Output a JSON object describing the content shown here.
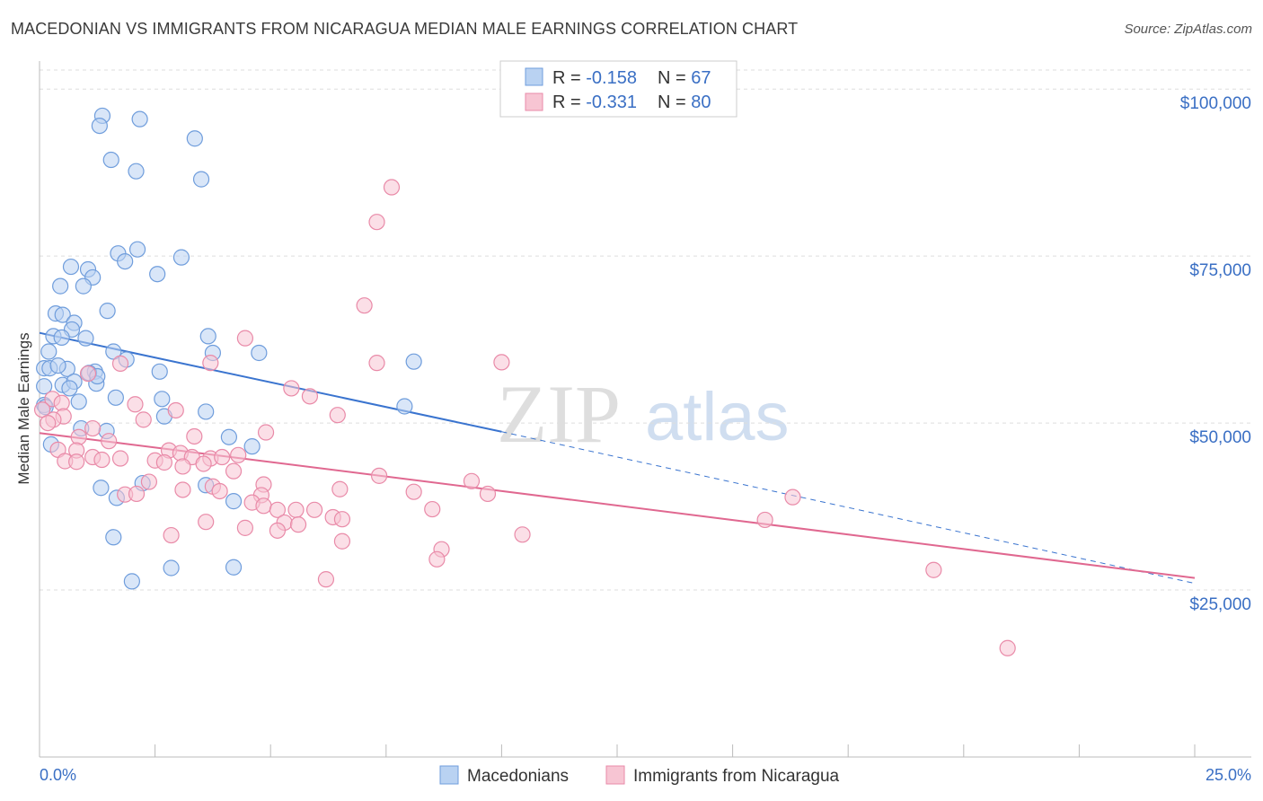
{
  "header": {
    "title": "MACEDONIAN VS IMMIGRANTS FROM NICARAGUA MEDIAN MALE EARNINGS CORRELATION CHART",
    "source": "Source: ZipAtlas.com"
  },
  "watermark": {
    "zip": "ZIP",
    "atlas": "atlas"
  },
  "colors": {
    "blue_fill": "#b9d2f2",
    "blue_stroke": "#6f9ddc",
    "blue_line": "#3a74cf",
    "pink_fill": "#f7c5d3",
    "pink_stroke": "#e98aa8",
    "pink_line": "#e06890",
    "grid": "#dddddd",
    "tick_text": "#3a6fc4"
  },
  "legend": {
    "rows": [
      {
        "r_label": "R = ",
        "r_value": "-0.158",
        "n_label": "N = ",
        "n_value": "67"
      },
      {
        "r_label": "R = ",
        "r_value": "-0.331",
        "n_label": "N = ",
        "n_value": "80"
      }
    ]
  },
  "bottom_legend": {
    "items": [
      "Macedonians",
      "Immigrants from Nicaragua"
    ]
  },
  "chart_data": {
    "type": "scatter",
    "title": "MACEDONIAN VS IMMIGRANTS FROM NICARAGUA MEDIAN MALE EARNINGS CORRELATION CHART",
    "xlabel": "",
    "ylabel": "Median Male Earnings",
    "xlim": [
      0,
      25
    ],
    "ylim": [
      0,
      105000
    ],
    "x_tick_labels": [
      "0.0%",
      "25.0%"
    ],
    "y_ticks": [
      25000,
      50000,
      75000,
      100000
    ],
    "y_tick_labels": [
      "$25,000",
      "$50,000",
      "$75,000",
      "$100,000"
    ],
    "series": [
      {
        "name": "Macedonians",
        "r": -0.158,
        "n": 67,
        "trend": {
          "x0": 0,
          "y0": 63500,
          "x1": 10,
          "y1": 48700,
          "dash_to_x": 25,
          "dash_to_y": 26000
        },
        "points": [
          [
            1.36,
            96000
          ],
          [
            1.3,
            94500
          ],
          [
            2.17,
            95500
          ],
          [
            3.36,
            92600
          ],
          [
            1.55,
            89400
          ],
          [
            2.09,
            87700
          ],
          [
            3.5,
            86500
          ],
          [
            2.12,
            76000
          ],
          [
            1.7,
            75400
          ],
          [
            1.85,
            74200
          ],
          [
            3.07,
            74800
          ],
          [
            0.68,
            73400
          ],
          [
            1.05,
            73000
          ],
          [
            1.15,
            71800
          ],
          [
            2.55,
            72300
          ],
          [
            0.45,
            70500
          ],
          [
            0.95,
            70500
          ],
          [
            1.47,
            66800
          ],
          [
            0.35,
            66400
          ],
          [
            0.5,
            66200
          ],
          [
            0.75,
            65000
          ],
          [
            0.7,
            64000
          ],
          [
            0.3,
            63000
          ],
          [
            0.48,
            62800
          ],
          [
            1.0,
            62700
          ],
          [
            3.65,
            63000
          ],
          [
            0.2,
            60700
          ],
          [
            1.6,
            60700
          ],
          [
            1.88,
            59500
          ],
          [
            3.75,
            60500
          ],
          [
            4.75,
            60500
          ],
          [
            8.1,
            59200
          ],
          [
            0.1,
            58200
          ],
          [
            0.22,
            58200
          ],
          [
            0.6,
            58100
          ],
          [
            1.2,
            57700
          ],
          [
            1.07,
            57500
          ],
          [
            2.6,
            57700
          ],
          [
            0.5,
            55700
          ],
          [
            0.75,
            56200
          ],
          [
            1.23,
            55900
          ],
          [
            0.1,
            55500
          ],
          [
            0.65,
            55200
          ],
          [
            1.65,
            53800
          ],
          [
            2.65,
            53600
          ],
          [
            0.85,
            53200
          ],
          [
            0.1,
            52700
          ],
          [
            3.6,
            51700
          ],
          [
            7.9,
            52500
          ],
          [
            2.7,
            51000
          ],
          [
            0.9,
            49200
          ],
          [
            1.45,
            48800
          ],
          [
            4.1,
            47900
          ],
          [
            4.6,
            46500
          ],
          [
            0.25,
            46800
          ],
          [
            2.23,
            41000
          ],
          [
            1.33,
            40300
          ],
          [
            3.6,
            40700
          ],
          [
            1.67,
            38800
          ],
          [
            4.2,
            38300
          ],
          [
            1.6,
            32900
          ],
          [
            2.85,
            28300
          ],
          [
            4.2,
            28400
          ],
          [
            2.0,
            26300
          ],
          [
            0.13,
            52400
          ],
          [
            0.4,
            58600
          ],
          [
            1.25,
            57000
          ]
        ]
      },
      {
        "name": "Immigrants from Nicaragua",
        "r": -0.331,
        "n": 80,
        "trend": {
          "x0": 0,
          "y0": 48500,
          "x1": 25,
          "y1": 26800
        },
        "points": [
          [
            7.62,
            85300
          ],
          [
            7.3,
            80100
          ],
          [
            7.03,
            67600
          ],
          [
            4.45,
            62700
          ],
          [
            7.3,
            59000
          ],
          [
            10.0,
            59100
          ],
          [
            1.75,
            58900
          ],
          [
            3.7,
            59000
          ],
          [
            1.05,
            57400
          ],
          [
            5.45,
            55200
          ],
          [
            5.85,
            54000
          ],
          [
            0.28,
            53600
          ],
          [
            0.48,
            53000
          ],
          [
            2.07,
            52800
          ],
          [
            0.06,
            52000
          ],
          [
            2.95,
            51900
          ],
          [
            6.45,
            51200
          ],
          [
            0.52,
            51000
          ],
          [
            0.3,
            50500
          ],
          [
            0.18,
            50000
          ],
          [
            2.25,
            50500
          ],
          [
            1.15,
            49200
          ],
          [
            4.9,
            48600
          ],
          [
            3.35,
            48000
          ],
          [
            0.85,
            47900
          ],
          [
            1.5,
            47300
          ],
          [
            0.4,
            46000
          ],
          [
            2.8,
            45900
          ],
          [
            0.8,
            45900
          ],
          [
            3.05,
            45500
          ],
          [
            4.3,
            45200
          ],
          [
            1.15,
            44900
          ],
          [
            1.75,
            44700
          ],
          [
            3.3,
            44900
          ],
          [
            3.7,
            44700
          ],
          [
            3.95,
            44900
          ],
          [
            0.55,
            44300
          ],
          [
            0.8,
            44200
          ],
          [
            1.35,
            44500
          ],
          [
            2.5,
            44400
          ],
          [
            2.7,
            44100
          ],
          [
            3.55,
            43900
          ],
          [
            3.1,
            43500
          ],
          [
            4.2,
            42800
          ],
          [
            7.35,
            42100
          ],
          [
            9.35,
            41300
          ],
          [
            2.37,
            41200
          ],
          [
            3.75,
            40500
          ],
          [
            4.85,
            40800
          ],
          [
            3.1,
            40000
          ],
          [
            6.5,
            40100
          ],
          [
            8.1,
            39700
          ],
          [
            9.7,
            39400
          ],
          [
            1.85,
            39300
          ],
          [
            2.1,
            39400
          ],
          [
            3.9,
            39800
          ],
          [
            4.8,
            39200
          ],
          [
            4.6,
            38100
          ],
          [
            4.85,
            37600
          ],
          [
            16.3,
            38900
          ],
          [
            8.5,
            37100
          ],
          [
            5.55,
            37000
          ],
          [
            5.15,
            37000
          ],
          [
            5.95,
            37000
          ],
          [
            6.35,
            35900
          ],
          [
            6.55,
            35600
          ],
          [
            3.6,
            35200
          ],
          [
            5.3,
            35100
          ],
          [
            5.6,
            34800
          ],
          [
            4.45,
            34300
          ],
          [
            5.15,
            33900
          ],
          [
            10.45,
            33300
          ],
          [
            2.85,
            33200
          ],
          [
            6.55,
            32300
          ],
          [
            8.7,
            31100
          ],
          [
            8.6,
            29600
          ],
          [
            19.35,
            28000
          ],
          [
            15.7,
            35500
          ],
          [
            6.2,
            26600
          ],
          [
            20.95,
            16300
          ]
        ]
      }
    ]
  }
}
